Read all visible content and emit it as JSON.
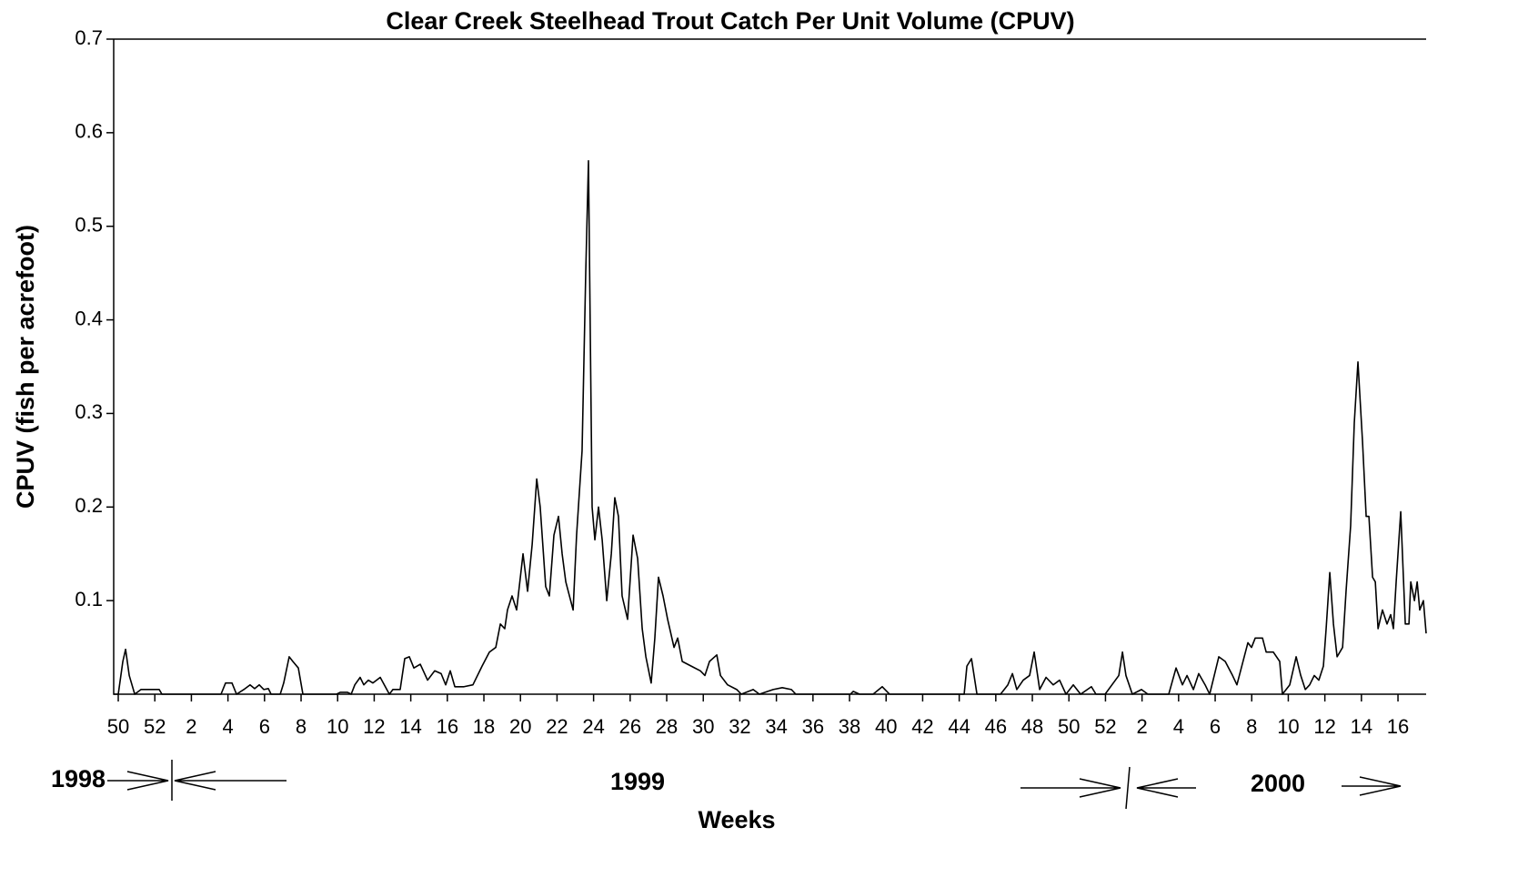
{
  "chart_data": {
    "type": "line",
    "title": "Clear Creek Steelhead Trout Catch Per Unit Volume (CPUV)",
    "y_label": "CPUV (fish per acrefoot)",
    "x_label": "Weeks",
    "annotations": [
      "1998",
      "1999",
      "2000"
    ],
    "color": "#000000",
    "xlim": [
      -0.25,
      71.54
    ],
    "ylim": [
      0,
      0.7
    ],
    "yticks": [
      0.1,
      0.2,
      0.3,
      0.4,
      0.5,
      0.6,
      0.7
    ],
    "xticks": [
      {
        "value": 0,
        "label": "50"
      },
      {
        "value": 2,
        "label": "52"
      },
      {
        "value": 4,
        "label": "2"
      },
      {
        "value": 6,
        "label": "4"
      },
      {
        "value": 8,
        "label": "6"
      },
      {
        "value": 10,
        "label": "8"
      },
      {
        "value": 12,
        "label": "10"
      },
      {
        "value": 14,
        "label": "12"
      },
      {
        "value": 16,
        "label": "14"
      },
      {
        "value": 18,
        "label": "16"
      },
      {
        "value": 20,
        "label": "18"
      },
      {
        "value": 22,
        "label": "20"
      },
      {
        "value": 24,
        "label": "22"
      },
      {
        "value": 26,
        "label": "24"
      },
      {
        "value": 28,
        "label": "26"
      },
      {
        "value": 30,
        "label": "28"
      },
      {
        "value": 32,
        "label": "30"
      },
      {
        "value": 34,
        "label": "32"
      },
      {
        "value": 36,
        "label": "34"
      },
      {
        "value": 38,
        "label": "36"
      },
      {
        "value": 40,
        "label": "38"
      },
      {
        "value": 42,
        "label": "40"
      },
      {
        "value": 44,
        "label": "42"
      },
      {
        "value": 46,
        "label": "44"
      },
      {
        "value": 48,
        "label": "46"
      },
      {
        "value": 50,
        "label": "48"
      },
      {
        "value": 52,
        "label": "50"
      },
      {
        "value": 54,
        "label": "52"
      },
      {
        "value": 56,
        "label": "2"
      },
      {
        "value": 58,
        "label": "4"
      },
      {
        "value": 60,
        "label": "6"
      },
      {
        "value": 62,
        "label": "8"
      },
      {
        "value": 64,
        "label": "10"
      },
      {
        "value": 66,
        "label": "12"
      },
      {
        "value": 68,
        "label": "14"
      },
      {
        "value": 70,
        "label": "16"
      }
    ],
    "x": [
      -0.25,
      0,
      0.25,
      0.4,
      0.6,
      0.9,
      1.24,
      2.24,
      2.39,
      5.62,
      5.87,
      6.22,
      6.47,
      6.87,
      7.21,
      7.46,
      7.71,
      7.96,
      8.21,
      8.36,
      8.86,
      9.05,
      9.35,
      9.55,
      9.85,
      10.1,
      11.94,
      12.14,
      12.54,
      12.74,
      12.94,
      13.23,
      13.43,
      13.68,
      13.93,
      14.33,
      14.83,
      15.02,
      15.42,
      15.67,
      15.92,
      16.17,
      16.52,
      16.92,
      17.31,
      17.66,
      17.91,
      18.16,
      18.41,
      18.91,
      19.4,
      19.9,
      20.3,
      20.65,
      20.9,
      21.14,
      21.29,
      21.54,
      21.79,
      22.14,
      22.39,
      22.64,
      22.89,
      23.08,
      23.38,
      23.58,
      23.83,
      24.08,
      24.28,
      24.48,
      24.88,
      25.07,
      25.37,
      25.57,
      25.72,
      25.92,
      26.07,
      26.27,
      26.47,
      26.72,
      26.97,
      27.16,
      27.36,
      27.56,
      27.86,
      28.16,
      28.41,
      28.66,
      28.86,
      29.15,
      29.35,
      29.55,
      29.8,
      30.05,
      30.4,
      30.6,
      30.85,
      31.34,
      31.84,
      32.09,
      32.34,
      32.74,
      32.94,
      33.33,
      33.83,
      34.08,
      34.73,
      35.07,
      35.82,
      36.32,
      36.82,
      37.06,
      40.05,
      40.2,
      40.55,
      41.29,
      41.79,
      42.19,
      46.27,
      46.42,
      46.67,
      46.97,
      48.26,
      48.66,
      48.91,
      49.15,
      49.5,
      49.85,
      50.1,
      50.4,
      50.75,
      51.14,
      51.49,
      51.84,
      52.24,
      52.64,
      53.23,
      53.48,
      53.98,
      54.73,
      54.93,
      55.12,
      55.47,
      55.97,
      56.32,
      57.46,
      57.86,
      58.21,
      58.46,
      58.81,
      59.1,
      59.45,
      59.7,
      59.95,
      60.2,
      60.55,
      60.95,
      61.19,
      61.79,
      61.99,
      62.19,
      62.59,
      62.79,
      63.18,
      63.53,
      63.68,
      64.08,
      64.43,
      64.68,
      64.93,
      65.17,
      65.42,
      65.67,
      65.92,
      66.07,
      66.27,
      66.47,
      66.67,
      66.97,
      67.16,
      67.41,
      67.61,
      67.81,
      68.06,
      68.26,
      68.41,
      68.61,
      68.76,
      68.91,
      69.15,
      69.4,
      69.6,
      69.75,
      69.9,
      70.15,
      70.4,
      70.6,
      70.7,
      70.9,
      71.05,
      71.19,
      71.39,
      71.54
    ],
    "values": [
      0,
      0,
      0.035,
      0.048,
      0.02,
      0,
      0.005,
      0.005,
      0,
      0,
      0.012,
      0.012,
      0,
      0.005,
      0.01,
      0.006,
      0.01,
      0.005,
      0.006,
      0,
      0,
      0.012,
      0.04,
      0.035,
      0.028,
      0,
      0,
      0.002,
      0.002,
      0,
      0.01,
      0.018,
      0.01,
      0.015,
      0.012,
      0.018,
      0,
      0.005,
      0.005,
      0.038,
      0.04,
      0.028,
      0.032,
      0.015,
      0.025,
      0.022,
      0.01,
      0.025,
      0.008,
      0.008,
      0.01,
      0.03,
      0.045,
      0.05,
      0.075,
      0.07,
      0.09,
      0.105,
      0.09,
      0.15,
      0.11,
      0.16,
      0.23,
      0.2,
      0.115,
      0.105,
      0.17,
      0.19,
      0.15,
      0.12,
      0.09,
      0.17,
      0.26,
      0.45,
      0.57,
      0.2,
      0.165,
      0.2,
      0.165,
      0.1,
      0.15,
      0.21,
      0.19,
      0.105,
      0.08,
      0.17,
      0.145,
      0.07,
      0.04,
      0.012,
      0.06,
      0.125,
      0.105,
      0.08,
      0.05,
      0.06,
      0.035,
      0.03,
      0.025,
      0.02,
      0.035,
      0.042,
      0.02,
      0.01,
      0.005,
      0,
      0.005,
      0,
      0.005,
      0.007,
      0.005,
      0,
      0,
      0.003,
      0,
      0,
      0.008,
      0,
      0,
      0.03,
      0.038,
      0,
      0,
      0.01,
      0.022,
      0.005,
      0.015,
      0.02,
      0.045,
      0.005,
      0.018,
      0.01,
      0.015,
      0,
      0.01,
      0,
      0.008,
      0,
      0,
      0.02,
      0.045,
      0.02,
      0,
      0.005,
      0,
      0,
      0.028,
      0.01,
      0.02,
      0.005,
      0.022,
      0.01,
      0,
      0.02,
      0.04,
      0.035,
      0.02,
      0.01,
      0.055,
      0.05,
      0.06,
      0.06,
      0.045,
      0.045,
      0.035,
      0,
      0.01,
      0.04,
      0.02,
      0.005,
      0.01,
      0.02,
      0.015,
      0.03,
      0.07,
      0.13,
      0.075,
      0.04,
      0.05,
      0.11,
      0.18,
      0.29,
      0.355,
      0.27,
      0.19,
      0.19,
      0.125,
      0.12,
      0.07,
      0.09,
      0.075,
      0.085,
      0.07,
      0.12,
      0.195,
      0.075,
      0.075,
      0.12,
      0.1,
      0.12,
      0.09,
      0.1,
      0.065
    ]
  }
}
